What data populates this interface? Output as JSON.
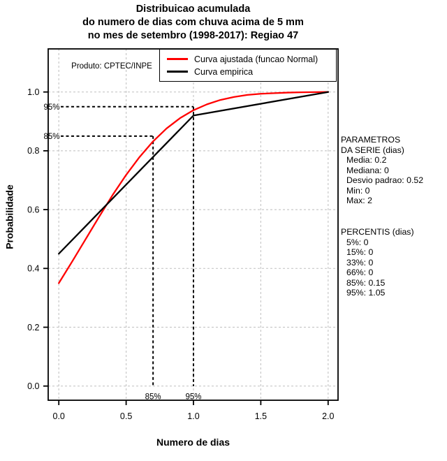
{
  "chart_data": {
    "type": "line",
    "title": "Distribuicao acumulada do numero de dias com chuva acima de 5 mm no mes de setembro (1998-2017): Regiao 47",
    "title_lines": [
      "Distribuicao acumulada",
      "do numero de dias com chuva acima de 5 mm",
      "no mes de setembro (1998-2017): Regiao 47"
    ],
    "annotation": "Produto: CPTEC/INPE",
    "xlabel": "Numero de dias",
    "ylabel": "Probabilidade",
    "xlim": [
      0,
      2
    ],
    "ylim": [
      0,
      1
    ],
    "x_ticks": [
      0,
      0.5,
      1,
      1.5,
      2
    ],
    "x_tick_labels": [
      "0.0",
      "0.5",
      "1.0",
      "1.5",
      "2.0"
    ],
    "y_ticks": [
      0,
      0.2,
      0.4,
      0.6,
      0.8,
      1
    ],
    "y_tick_labels": [
      "0.0",
      "0.2",
      "0.4",
      "0.6",
      "0.8",
      "1.0"
    ],
    "grid": true,
    "legend_position": "top-right",
    "series": [
      {
        "name": "Curva ajustada (funcao Normal)",
        "color": "#ff0000",
        "points": [
          [
            0,
            0.35
          ],
          [
            0.1,
            0.424
          ],
          [
            0.2,
            0.5
          ],
          [
            0.3,
            0.576
          ],
          [
            0.4,
            0.65
          ],
          [
            0.5,
            0.718
          ],
          [
            0.6,
            0.779
          ],
          [
            0.7,
            0.832
          ],
          [
            0.8,
            0.876
          ],
          [
            0.9,
            0.911
          ],
          [
            1.0,
            0.938
          ],
          [
            1.1,
            0.958
          ],
          [
            1.2,
            0.973
          ],
          [
            1.3,
            0.983
          ],
          [
            1.4,
            0.99
          ],
          [
            1.5,
            0.994
          ],
          [
            1.6,
            0.996
          ],
          [
            1.7,
            0.998
          ],
          [
            1.8,
            0.999
          ],
          [
            1.9,
            0.9995
          ],
          [
            2.0,
            1.0
          ]
        ]
      },
      {
        "name": "Curva empirica",
        "color": "#000000",
        "points": [
          [
            0,
            0.45
          ],
          [
            1,
            0.92
          ],
          [
            2,
            1.0
          ]
        ]
      }
    ],
    "guides": [
      {
        "label": "85%",
        "level": 0.85,
        "x": 0.7
      },
      {
        "label": "95%",
        "level": 0.95,
        "x": 1.0
      }
    ]
  },
  "side_panel": {
    "params": {
      "header_line1": "PARAMETROS",
      "header_line2": "DA SERIE (dias)",
      "items": [
        "Media: 0.2",
        "Mediana: 0",
        "Desvio padrao: 0.52",
        "Min: 0",
        "Max: 2"
      ]
    },
    "percentis": {
      "header": "PERCENTIS (dias)",
      "items": [
        "5%: 0",
        "15%: 0",
        "33%: 0",
        "66%: 0",
        "85%: 0.15",
        "95%: 1.05"
      ]
    }
  },
  "colors": {
    "grid": "#c8c8c8",
    "axis": "#000000",
    "background": "#ffffff"
  }
}
